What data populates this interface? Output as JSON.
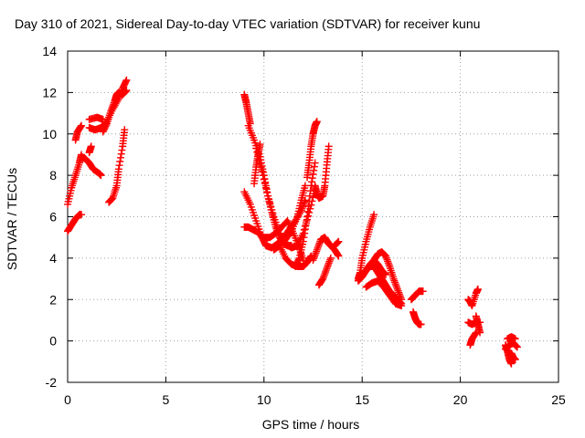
{
  "chart_data": {
    "type": "scatter",
    "title": "Day 310 of 2021, Sidereal Day-to-day VTEC variation (SDTVAR) for receiver kunu",
    "xlabel": "GPS time / hours",
    "ylabel": "SDTVAR / TECUs",
    "xlim": [
      0,
      25
    ],
    "ylim": [
      -2,
      14
    ],
    "xticks": [
      "0",
      "5",
      "10",
      "15",
      "20",
      "25"
    ],
    "yticks": [
      "-2",
      "0",
      "2",
      "4",
      "6",
      "8",
      "10",
      "12",
      "14"
    ],
    "grid": true,
    "marker": "+",
    "series": [
      {
        "name": "SDTVAR",
        "color": "#ff0000",
        "tracks": [
          {
            "x": [
              0.0,
              0.2,
              0.4,
              0.6,
              0.7
            ],
            "y": [
              5.3,
              5.6,
              5.9,
              6.1,
              6.1
            ]
          },
          {
            "x": [
              0.0,
              0.2,
              0.4,
              0.6,
              0.7
            ],
            "y": [
              6.6,
              7.4,
              8.0,
              8.6,
              9.0
            ]
          },
          {
            "x": [
              0.4,
              0.5,
              0.7
            ],
            "y": [
              9.7,
              10.1,
              10.4
            ]
          },
          {
            "x": [
              0.7,
              0.9,
              1.1,
              1.3,
              1.6,
              1.7
            ],
            "y": [
              8.9,
              8.8,
              8.6,
              8.3,
              8.1,
              8.0
            ]
          },
          {
            "x": [
              1.1,
              1.2
            ],
            "y": [
              9.1,
              9.4
            ]
          },
          {
            "x": [
              1.1,
              1.4,
              1.7,
              2.0,
              2.3,
              2.6,
              2.8,
              3.0
            ],
            "y": [
              10.3,
              10.2,
              10.3,
              10.6,
              11.2,
              11.7,
              12.2,
              12.6
            ]
          },
          {
            "x": [
              1.1,
              1.5,
              1.8
            ],
            "y": [
              10.7,
              10.8,
              10.7
            ]
          },
          {
            "x": [
              1.8,
              2.0,
              2.2,
              2.4,
              2.5,
              2.6,
              2.8,
              3.0
            ],
            "y": [
              10.1,
              10.5,
              11.1,
              11.6,
              11.9,
              12.0,
              11.9,
              12.1
            ]
          },
          {
            "x": [
              2.1,
              2.3,
              2.5,
              2.6,
              2.8,
              2.9
            ],
            "y": [
              6.7,
              6.9,
              7.5,
              8.3,
              9.4,
              10.2
            ]
          },
          {
            "x": [
              9.0,
              9.2,
              9.4,
              9.6
            ],
            "y": [
              5.5,
              5.5,
              5.4,
              5.3
            ]
          },
          {
            "x": [
              9.0,
              9.1,
              9.2,
              9.3
            ],
            "y": [
              11.9,
              11.5,
              11.0,
              10.5
            ]
          },
          {
            "x": [
              9.2,
              9.5,
              9.8,
              10.0,
              10.2,
              10.4,
              10.6,
              10.8,
              11.0,
              11.2,
              11.4
            ],
            "y": [
              10.4,
              9.7,
              8.9,
              8.0,
              7.0,
              6.2,
              5.5,
              5.0,
              4.7,
              4.6,
              4.6
            ]
          },
          {
            "x": [
              9.0,
              9.3,
              9.6,
              9.9,
              10.1,
              10.4,
              10.7,
              11.0,
              11.3,
              11.6,
              11.9,
              12.1
            ],
            "y": [
              7.2,
              6.6,
              5.8,
              5.0,
              4.6,
              4.5,
              4.7,
              5.0,
              5.4,
              5.8,
              6.3,
              6.8
            ]
          },
          {
            "x": [
              9.5,
              9.6,
              9.7,
              9.8
            ],
            "y": [
              7.6,
              8.4,
              9.0,
              9.5
            ]
          },
          {
            "x": [
              9.6,
              9.9,
              10.2,
              10.5,
              10.8,
              11.1,
              11.4,
              11.7,
              12.0,
              12.3,
              12.6
            ],
            "y": [
              9.3,
              8.2,
              7.0,
              6.0,
              5.2,
              4.7,
              4.5,
              4.6,
              5.2,
              6.2,
              7.3
            ]
          },
          {
            "x": [
              9.7,
              10.0,
              10.3,
              10.6,
              10.9,
              11.2,
              11.5,
              11.8,
              12.0
            ],
            "y": [
              5.2,
              5.0,
              5.0,
              5.2,
              5.5,
              5.8,
              5.2,
              4.5,
              3.9
            ]
          },
          {
            "x": [
              10.5,
              10.8,
              11.1,
              11.4,
              11.7,
              11.9,
              12.1
            ],
            "y": [
              4.4,
              4.6,
              4.9,
              5.3,
              6.0,
              6.8,
              7.5
            ]
          },
          {
            "x": [
              10.8,
              11.1,
              11.4,
              11.7,
              12.0,
              12.2,
              12.4
            ],
            "y": [
              4.6,
              4.0,
              3.7,
              3.6,
              3.6,
              3.8,
              4.1
            ]
          },
          {
            "x": [
              11.6,
              11.8,
              12.0,
              12.2,
              12.4,
              12.6
            ],
            "y": [
              3.6,
              4.0,
              4.8,
              6.0,
              7.5,
              8.6
            ]
          },
          {
            "x": [
              12.2,
              12.3,
              12.4,
              12.5,
              12.6,
              12.7
            ],
            "y": [
              7.9,
              8.6,
              9.4,
              10.0,
              10.4,
              10.6
            ]
          },
          {
            "x": [
              12.6,
              12.7,
              12.8,
              13.0,
              13.1,
              13.2,
              13.3
            ],
            "y": [
              7.5,
              7.1,
              6.9,
              7.0,
              7.5,
              8.5,
              9.4
            ]
          },
          {
            "x": [
              12.5,
              12.7,
              12.9,
              13.1,
              13.3
            ],
            "y": [
              3.9,
              4.4,
              4.9,
              5.0,
              4.7
            ]
          },
          {
            "x": [
              12.8,
              13.0,
              13.2,
              13.4
            ],
            "y": [
              2.7,
              3.0,
              3.5,
              4.0
            ]
          },
          {
            "x": [
              13.2,
              13.4,
              13.6,
              13.8
            ],
            "y": [
              4.8,
              4.6,
              4.4,
              4.1
            ]
          },
          {
            "x": [
              13.6,
              13.8
            ],
            "y": [
              4.6,
              4.8
            ]
          },
          {
            "x": [
              14.8,
              14.9,
              15.0,
              15.2,
              15.4,
              15.6
            ],
            "y": [
              3.0,
              3.3,
              4.0,
              4.8,
              5.5,
              6.1
            ]
          },
          {
            "x": [
              14.8,
              15.0,
              15.2,
              15.4,
              15.6,
              15.8,
              16.0,
              16.2,
              16.4,
              16.6,
              16.8,
              17.0
            ],
            "y": [
              2.9,
              3.1,
              3.4,
              3.6,
              3.6,
              3.3,
              3.0,
              2.7,
              2.4,
              2.2,
              2.0,
              1.8
            ]
          },
          {
            "x": [
              15.0,
              15.2,
              15.4,
              15.6,
              15.8,
              16.0,
              16.2
            ],
            "y": [
              3.2,
              3.4,
              3.7,
              3.9,
              3.7,
              3.4,
              3.2
            ]
          },
          {
            "x": [
              15.6,
              15.8,
              16.0,
              16.2,
              16.4,
              16.6,
              16.8,
              17.0
            ],
            "y": [
              3.9,
              4.2,
              4.3,
              4.1,
              3.6,
              3.0,
              2.5,
              2.0
            ]
          },
          {
            "x": [
              15.2,
              15.5,
              15.8,
              16.1,
              16.4,
              16.7,
              17.0
            ],
            "y": [
              2.6,
              2.8,
              2.9,
              2.6,
              2.2,
              1.8,
              1.7
            ]
          },
          {
            "x": [
              17.5,
              17.7,
              17.9,
              18.1
            ],
            "y": [
              2.0,
              2.2,
              2.4,
              2.4
            ]
          },
          {
            "x": [
              17.6,
              17.7,
              17.8,
              17.9,
              18.0
            ],
            "y": [
              1.4,
              1.1,
              0.9,
              0.8,
              0.8
            ]
          },
          {
            "x": [
              20.4,
              20.5,
              20.6,
              20.8,
              20.9
            ],
            "y": [
              2.0,
              1.9,
              1.7,
              2.3,
              2.5
            ]
          },
          {
            "x": [
              20.4,
              20.6,
              20.8,
              21.0
            ],
            "y": [
              0.9,
              0.8,
              0.9,
              0.9
            ]
          },
          {
            "x": [
              20.5,
              20.6,
              20.8
            ],
            "y": [
              -0.2,
              0.1,
              0.4
            ]
          },
          {
            "x": [
              20.8,
              20.9,
              21.0
            ],
            "y": [
              1.2,
              0.8,
              0.4
            ]
          },
          {
            "x": [
              22.3,
              22.4,
              22.5,
              22.6
            ],
            "y": [
              -0.2,
              -0.5,
              -0.9,
              -1.1
            ]
          },
          {
            "x": [
              22.3,
              22.5,
              22.7,
              22.9
            ],
            "y": [
              -0.4,
              -0.2,
              -0.1,
              -0.3
            ]
          },
          {
            "x": [
              22.4,
              22.6,
              22.8
            ],
            "y": [
              0.1,
              0.2,
              0.1
            ]
          },
          {
            "x": [
              22.5,
              22.6,
              22.7,
              22.8
            ],
            "y": [
              -0.7,
              -0.6,
              -0.8,
              -0.9
            ]
          }
        ]
      }
    ]
  }
}
